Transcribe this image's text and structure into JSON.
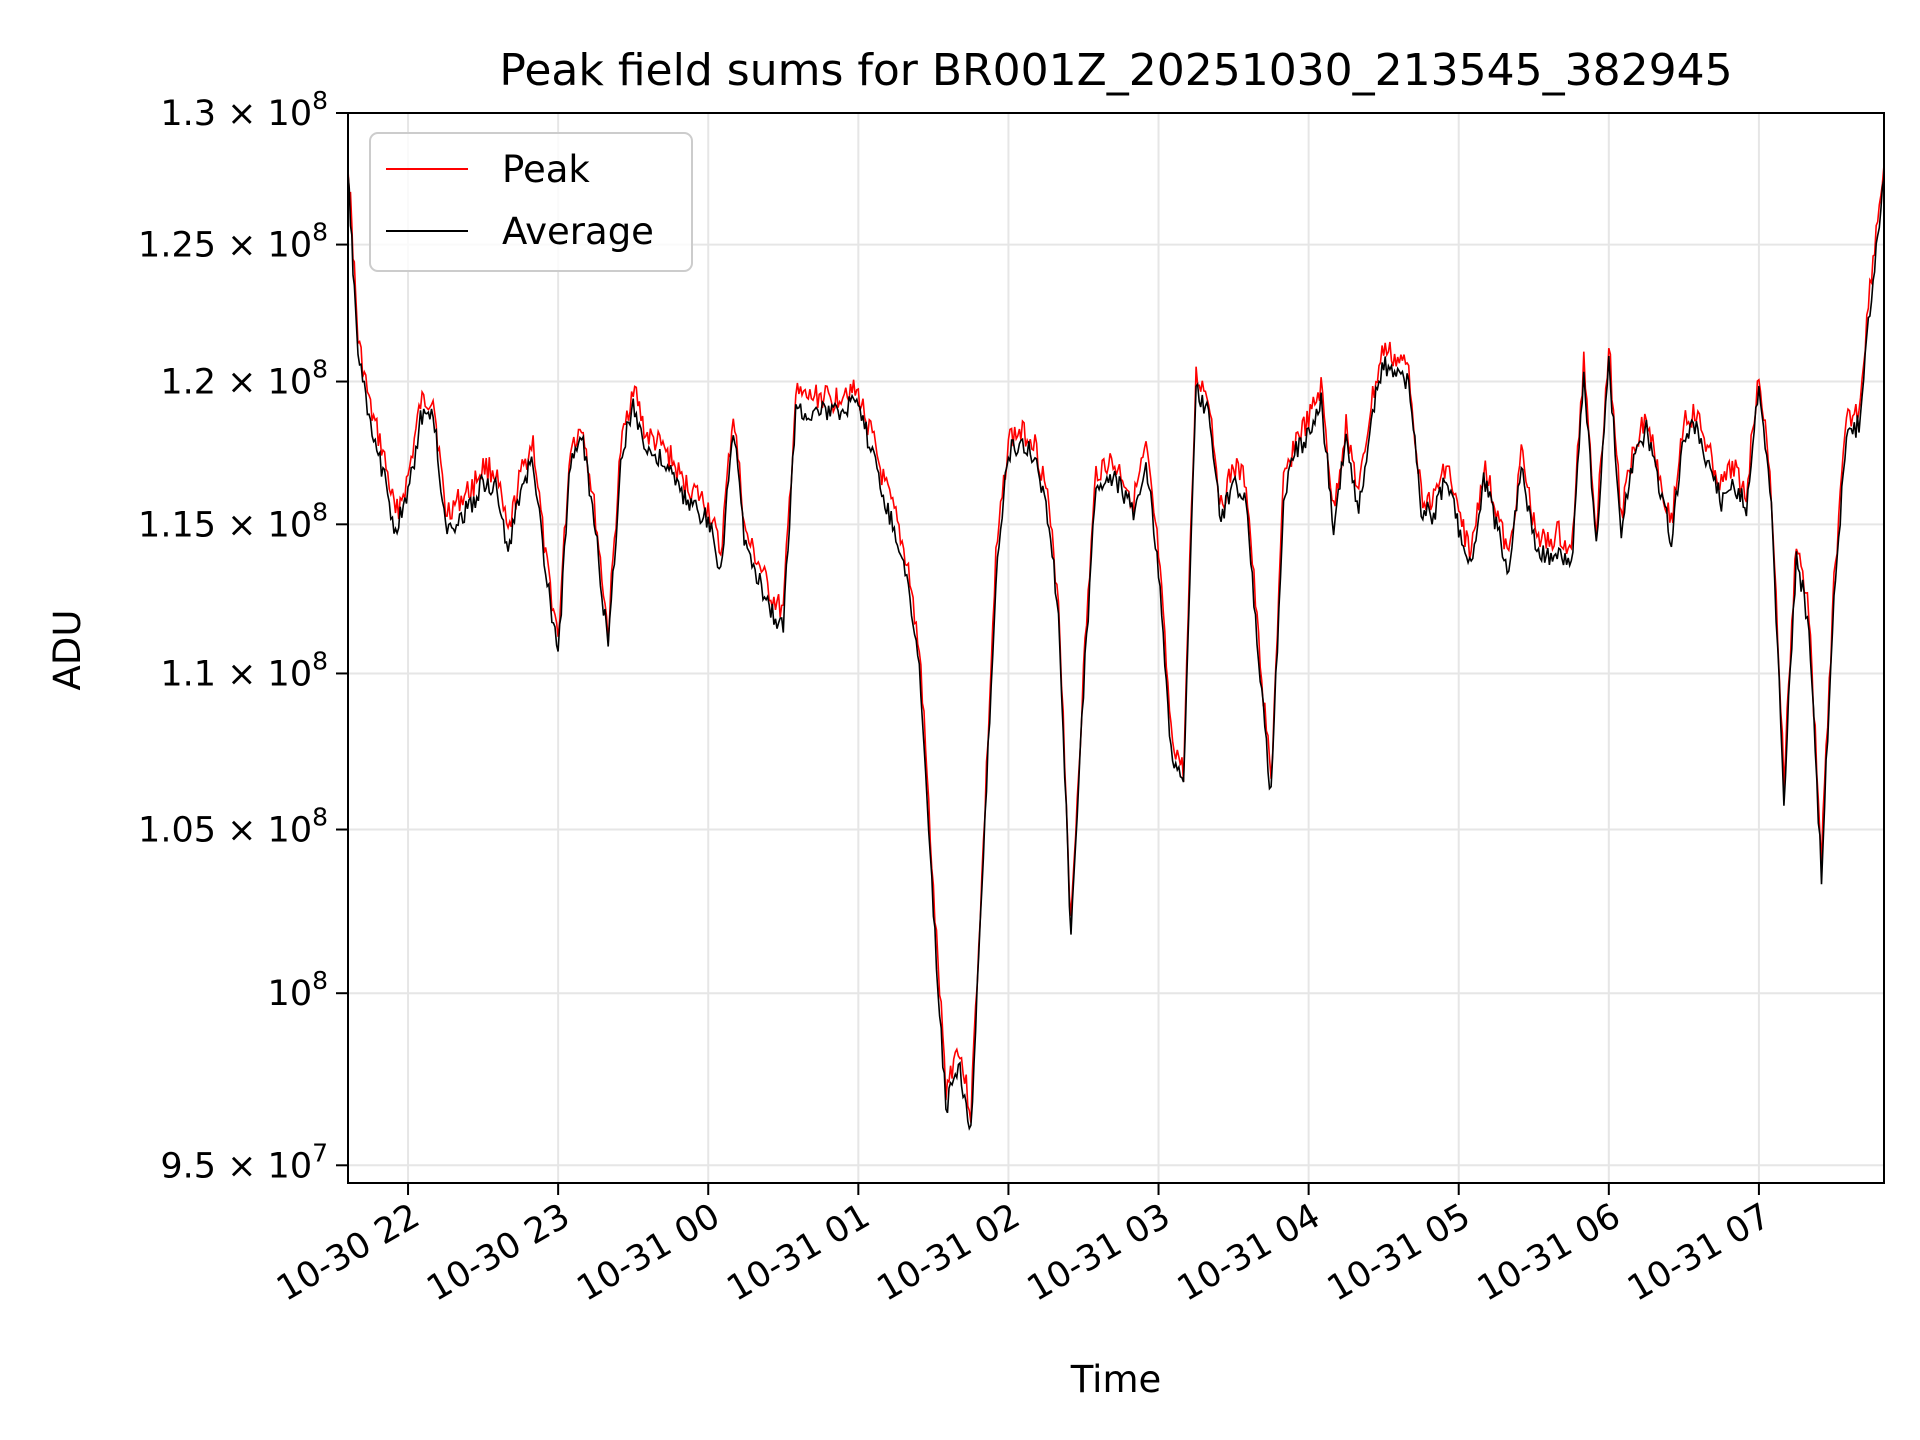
{
  "chart_data": {
    "type": "line",
    "title": "Peak field sums for BR001Z_20251030_213545_382945",
    "xlabel": "Time",
    "ylabel": "ADU",
    "yscale": "log",
    "ylim": [
      94500000,
      130000000
    ],
    "xlim": [
      "2025-10-30 21:36",
      "2025-10-31 07:50"
    ],
    "grid": true,
    "legend_position": "top-left",
    "x_ticks": [
      "10-30 22",
      "10-30 23",
      "10-31 00",
      "10-31 01",
      "10-31 02",
      "10-31 03",
      "10-31 04",
      "10-31 05",
      "10-31 06",
      "10-31 07"
    ],
    "y_ticks": [
      {
        "value": 95000000,
        "mantissa": "9.5",
        "exp": "7"
      },
      {
        "value": 100000000,
        "mantissa": "",
        "exp": "8"
      },
      {
        "value": 105000000,
        "mantissa": "1.05",
        "exp": "8"
      },
      {
        "value": 110000000,
        "mantissa": "1.1",
        "exp": "8"
      },
      {
        "value": 115000000,
        "mantissa": "1.15",
        "exp": "8"
      },
      {
        "value": 120000000,
        "mantissa": "1.2",
        "exp": "8"
      },
      {
        "value": 125000000,
        "mantissa": "1.25",
        "exp": "8"
      },
      {
        "value": 130000000,
        "mantissa": "1.3",
        "exp": "8"
      }
    ],
    "series": [
      {
        "name": "Peak",
        "color": "#ff0000"
      },
      {
        "name": "Average",
        "color": "#000000"
      }
    ],
    "x": [
      "2025-10-30 21:36",
      "2025-10-30 21:40",
      "2025-10-30 21:45",
      "2025-10-30 21:50",
      "2025-10-30 21:55",
      "2025-10-30 22:00",
      "2025-10-30 22:05",
      "2025-10-30 22:10",
      "2025-10-30 22:15",
      "2025-10-30 22:20",
      "2025-10-30 22:25",
      "2025-10-30 22:30",
      "2025-10-30 22:35",
      "2025-10-30 22:40",
      "2025-10-30 22:45",
      "2025-10-30 22:50",
      "2025-10-30 22:55",
      "2025-10-30 23:00",
      "2025-10-30 23:05",
      "2025-10-30 23:10",
      "2025-10-30 23:15",
      "2025-10-30 23:20",
      "2025-10-30 23:25",
      "2025-10-30 23:30",
      "2025-10-30 23:35",
      "2025-10-30 23:40",
      "2025-10-30 23:45",
      "2025-10-30 23:50",
      "2025-10-30 23:55",
      "2025-10-31 00:00",
      "2025-10-31 00:05",
      "2025-10-31 00:10",
      "2025-10-31 00:15",
      "2025-10-31 00:20",
      "2025-10-31 00:25",
      "2025-10-31 00:30",
      "2025-10-31 00:35",
      "2025-10-31 00:40",
      "2025-10-31 00:45",
      "2025-10-31 00:50",
      "2025-10-31 00:55",
      "2025-10-31 01:00",
      "2025-10-31 01:05",
      "2025-10-31 01:10",
      "2025-10-31 01:15",
      "2025-10-31 01:20",
      "2025-10-31 01:25",
      "2025-10-31 01:30",
      "2025-10-31 01:35",
      "2025-10-31 01:40",
      "2025-10-31 01:45",
      "2025-10-31 01:50",
      "2025-10-31 01:55",
      "2025-10-31 02:00",
      "2025-10-31 02:05",
      "2025-10-31 02:10",
      "2025-10-31 02:15",
      "2025-10-31 02:20",
      "2025-10-31 02:25",
      "2025-10-31 02:30",
      "2025-10-31 02:35",
      "2025-10-31 02:40",
      "2025-10-31 02:45",
      "2025-10-31 02:50",
      "2025-10-31 02:55",
      "2025-10-31 03:00",
      "2025-10-31 03:05",
      "2025-10-31 03:10",
      "2025-10-31 03:15",
      "2025-10-31 03:20",
      "2025-10-31 03:25",
      "2025-10-31 03:30",
      "2025-10-31 03:35",
      "2025-10-31 03:40",
      "2025-10-31 03:45",
      "2025-10-31 03:50",
      "2025-10-31 03:55",
      "2025-10-31 04:00",
      "2025-10-31 04:05",
      "2025-10-31 04:10",
      "2025-10-31 04:15",
      "2025-10-31 04:20",
      "2025-10-31 04:25",
      "2025-10-31 04:30",
      "2025-10-31 04:35",
      "2025-10-31 04:40",
      "2025-10-31 04:45",
      "2025-10-31 04:50",
      "2025-10-31 04:55",
      "2025-10-31 05:00",
      "2025-10-31 05:05",
      "2025-10-31 05:10",
      "2025-10-31 05:15",
      "2025-10-31 05:20",
      "2025-10-31 05:25",
      "2025-10-31 05:30",
      "2025-10-31 05:35",
      "2025-10-31 05:40",
      "2025-10-31 05:45",
      "2025-10-31 05:50",
      "2025-10-31 05:55",
      "2025-10-31 06:00",
      "2025-10-31 06:05",
      "2025-10-31 06:10",
      "2025-10-31 06:15",
      "2025-10-31 06:20",
      "2025-10-31 06:25",
      "2025-10-31 06:30",
      "2025-10-31 06:35",
      "2025-10-31 06:40",
      "2025-10-31 06:45",
      "2025-10-31 06:50",
      "2025-10-31 06:55",
      "2025-10-31 07:00",
      "2025-10-31 07:05",
      "2025-10-31 07:10",
      "2025-10-31 07:15",
      "2025-10-31 07:20",
      "2025-10-31 07:25",
      "2025-10-31 07:30",
      "2025-10-31 07:35",
      "2025-10-31 07:40",
      "2025-10-31 07:45",
      "2025-10-31 07:50"
    ],
    "peak": [
      128.2,
      121.5,
      119.0,
      117.5,
      115.3,
      116.6,
      119.2,
      119.5,
      115.4,
      115.8,
      116.2,
      117.0,
      116.8,
      114.6,
      116.7,
      117.9,
      113.8,
      111.2,
      117.8,
      118.4,
      115.2,
      111.3,
      117.6,
      119.9,
      118.1,
      117.8,
      117.3,
      116.4,
      116.1,
      115.6,
      114.0,
      118.9,
      114.6,
      113.7,
      112.6,
      112.0,
      119.5,
      119.4,
      119.5,
      119.3,
      119.8,
      119.5,
      118.2,
      116.5,
      115.2,
      113.5,
      110.2,
      103.0,
      97.2,
      98.5,
      96.5,
      104.5,
      113.8,
      118.0,
      118.2,
      118.0,
      116.3,
      112.5,
      102.0,
      110.0,
      116.8,
      117.2,
      116.8,
      115.8,
      117.6,
      114.0,
      108.0,
      106.8,
      120.2,
      119.5,
      115.6,
      117.0,
      116.5,
      111.0,
      106.5,
      116.4,
      118.0,
      118.6,
      119.8,
      115.4,
      118.5,
      116.0,
      119.2,
      121.2,
      120.8,
      120.5,
      116.0,
      115.8,
      117.2,
      115.3,
      114.0,
      117.0,
      115.5,
      113.8,
      117.5,
      115.0,
      114.3,
      114.7,
      113.9,
      120.8,
      114.8,
      121.3,
      115.2,
      117.8,
      118.8,
      116.9,
      115.0,
      118.7,
      118.8,
      117.5,
      116.3,
      117.0,
      116.0,
      120.5,
      116.0,
      106.5,
      114.5,
      112.0,
      104.0,
      113.0,
      118.5,
      119.0,
      124.0,
      128.0
    ],
    "average": [
      127.5,
      121.0,
      118.3,
      116.8,
      114.8,
      116.0,
      118.6,
      119.0,
      114.8,
      115.2,
      115.6,
      116.5,
      116.2,
      114.1,
      116.1,
      117.3,
      113.3,
      110.6,
      117.3,
      117.9,
      114.7,
      110.8,
      117.1,
      119.3,
      117.6,
      117.3,
      116.8,
      115.9,
      115.6,
      115.1,
      113.5,
      118.3,
      114.1,
      113.2,
      112.1,
      111.5,
      119.0,
      118.9,
      119.0,
      118.8,
      119.2,
      119.0,
      117.7,
      116.0,
      114.7,
      112.9,
      109.6,
      102.5,
      96.6,
      98.0,
      96.0,
      104.0,
      113.2,
      117.5,
      117.7,
      117.5,
      115.8,
      112.0,
      101.5,
      109.5,
      116.3,
      116.7,
      116.3,
      115.3,
      117.1,
      113.5,
      107.5,
      106.3,
      119.6,
      119.0,
      115.1,
      116.5,
      116.0,
      110.5,
      106.0,
      115.9,
      117.5,
      118.1,
      119.3,
      114.9,
      118.0,
      115.5,
      118.7,
      120.6,
      120.3,
      120.0,
      115.5,
      115.3,
      116.7,
      114.8,
      113.5,
      116.5,
      115.0,
      113.3,
      117.0,
      114.5,
      113.8,
      114.2,
      113.4,
      120.2,
      114.3,
      120.7,
      114.7,
      117.3,
      118.3,
      116.4,
      114.5,
      118.2,
      118.3,
      117.0,
      115.8,
      116.5,
      115.5,
      120.0,
      115.5,
      106.0,
      114.0,
      111.5,
      103.5,
      112.5,
      118.0,
      118.5,
      123.3,
      127.5
    ],
    "y_unit_multiplier": 1000000
  }
}
